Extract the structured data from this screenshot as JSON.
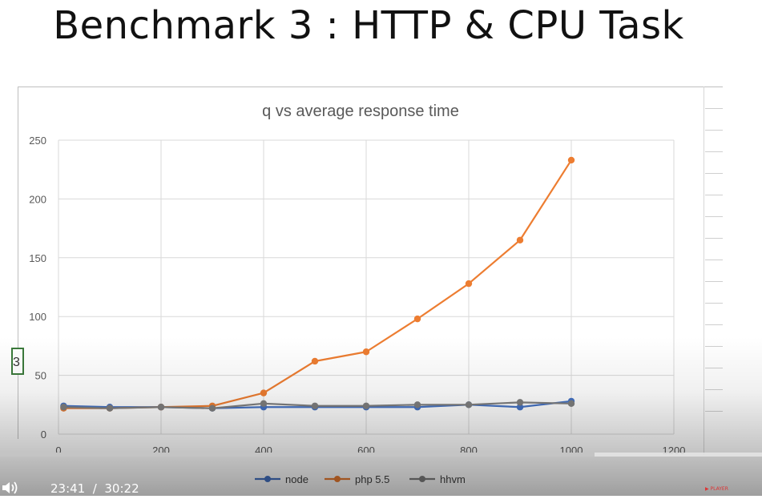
{
  "slide": {
    "title": "Benchmark 3 : HTTP & CPU Task"
  },
  "sheet": {
    "cell_text": "3"
  },
  "chart_data": {
    "type": "line",
    "title": "q vs average response time",
    "x": [
      10,
      100,
      200,
      300,
      400,
      500,
      600,
      700,
      800,
      900,
      1000
    ],
    "series": [
      {
        "name": "node",
        "color": "#4472c4",
        "values": [
          24,
          23,
          23,
          22,
          23,
          23,
          23,
          23,
          25,
          23,
          28
        ]
      },
      {
        "name": "php 5.5",
        "color": "#ed7d31",
        "values": [
          22,
          22,
          23,
          24,
          35,
          62,
          70,
          98,
          128,
          165,
          233
        ]
      },
      {
        "name": "hhvm",
        "color": "#7f7f7f",
        "values": [
          23,
          22,
          23,
          22,
          26,
          24,
          24,
          25,
          25,
          27,
          26
        ]
      }
    ],
    "xlim": [
      0,
      1200
    ],
    "ylim": [
      0,
      250
    ],
    "x_ticks": [
      "0",
      "200",
      "400",
      "600",
      "800",
      "1000",
      "1200"
    ],
    "y_ticks": [
      "0",
      "50",
      "100",
      "150",
      "200",
      "250"
    ],
    "grid": true,
    "legend_position": "bottom"
  },
  "player": {
    "current_time": "23:41",
    "separator": "/",
    "duration": "30:22",
    "progress": 0.78,
    "volume_icon": "volume-icon",
    "brand": "▶ PLAYER"
  }
}
